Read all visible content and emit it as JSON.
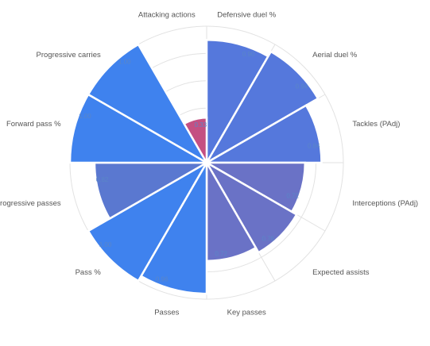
{
  "chart_data": {
    "type": "polar-bar",
    "title": "",
    "categories": [
      "Defensive duel %",
      "Aerial duel %",
      "Tackles (PAdj)",
      "Interceptions (PAdj)",
      "Expected assists",
      "Key passes",
      "Passes",
      "Pass %",
      "Progressive passes",
      "Forward pass %",
      "Progressive carries",
      "Attacking actions"
    ],
    "value_labels": [
      "0.90",
      "0.94",
      "0.84",
      "0.72",
      "0.76",
      "0.72",
      "0.96",
      "1.00",
      "0.82",
      "1.00",
      "1.00",
      "0.33"
    ],
    "values": [
      0.9,
      0.94,
      0.84,
      0.72,
      0.76,
      0.72,
      0.96,
      1.0,
      0.82,
      1.0,
      1.0,
      0.33
    ],
    "start_angle_deg": 0,
    "direction": "clockwise",
    "rlim": [
      0,
      1.0
    ],
    "grid": true,
    "grid_rings": 5,
    "colors": {
      "defensive": "#5578dc",
      "defensive_mid": "#6a72c6",
      "possession": "#3f82ee",
      "possession_mid": "#5a78d0",
      "attacking": "#c45082",
      "grid": "#e2e2e2",
      "value_text": "#5a86c8",
      "label_text": "#555555"
    },
    "bar_color_keys": [
      "defensive",
      "defensive",
      "defensive",
      "defensive_mid",
      "defensive_mid",
      "defensive_mid",
      "possession",
      "possession",
      "possession_mid",
      "possession",
      "possession",
      "attacking"
    ]
  }
}
